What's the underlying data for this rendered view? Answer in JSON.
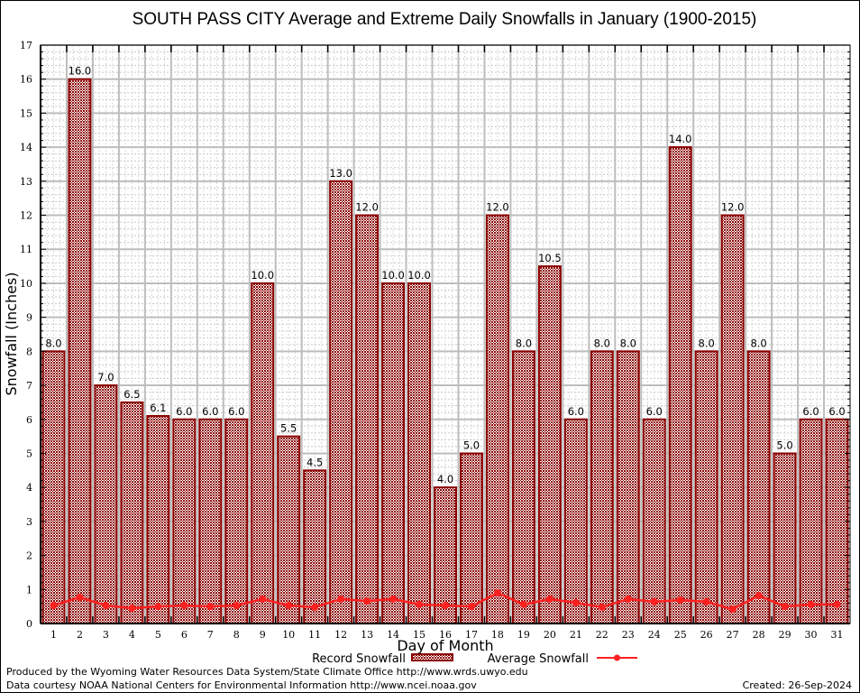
{
  "chart_data": {
    "type": "bar",
    "title": "SOUTH PASS CITY Average and Extreme Daily Snowfalls in January (1900-2015)",
    "xlabel": "Day of Month",
    "ylabel": "Snowfall (Inches)",
    "ylim": [
      0,
      17
    ],
    "yticks": [
      "0",
      "1",
      "2",
      "3",
      "4",
      "5",
      "6",
      "7",
      "8",
      "9",
      "10",
      "11",
      "12",
      "13",
      "14",
      "15",
      "16",
      "17"
    ],
    "grid": true,
    "categories": [
      "1",
      "2",
      "3",
      "4",
      "5",
      "6",
      "7",
      "8",
      "9",
      "10",
      "11",
      "12",
      "13",
      "14",
      "15",
      "16",
      "17",
      "18",
      "19",
      "20",
      "21",
      "22",
      "23",
      "24",
      "25",
      "26",
      "27",
      "28",
      "29",
      "30",
      "31"
    ],
    "series": [
      {
        "name": "Record Snowfall",
        "type": "bar",
        "color": "#8b0000",
        "values": [
          8.0,
          16.0,
          7.0,
          6.5,
          6.1,
          6.0,
          6.0,
          6.0,
          10.0,
          5.5,
          4.5,
          13.0,
          12.0,
          10.0,
          10.0,
          4.0,
          5.0,
          12.0,
          8.0,
          10.5,
          6.0,
          8.0,
          8.0,
          6.0,
          14.0,
          8.0,
          12.0,
          8.0,
          5.0,
          6.0,
          6.0
        ],
        "labels": [
          "8.0",
          "16.0",
          "7.0",
          "6.5",
          "6.1",
          "6.0",
          "6.0",
          "6.0",
          "10.0",
          "5.5",
          "4.5",
          "13.0",
          "12.0",
          "10.0",
          "10.0",
          "4.0",
          "5.0",
          "12.0",
          "8.0",
          "10.5",
          "6.0",
          "8.0",
          "8.0",
          "6.0",
          "14.0",
          "8.0",
          "12.0",
          "8.0",
          "5.0",
          "6.0",
          "6.0"
        ]
      },
      {
        "name": "Average Snowfall",
        "type": "line",
        "color": "#ff2020",
        "values": [
          0.53,
          0.77,
          0.53,
          0.45,
          0.5,
          0.53,
          0.5,
          0.53,
          0.72,
          0.53,
          0.48,
          0.72,
          0.66,
          0.72,
          0.56,
          0.53,
          0.5,
          0.9,
          0.56,
          0.72,
          0.61,
          0.48,
          0.72,
          0.64,
          0.69,
          0.64,
          0.42,
          0.82,
          0.5,
          0.56,
          0.56
        ]
      }
    ],
    "legend": {
      "placement": "bottom-center"
    }
  },
  "footer": {
    "line1": "Produced by the Wyoming Water Resources Data System/State Climate Office http://www.wrds.uwyo.edu",
    "line2": "Data courtesy NOAA National Centers for Environmental Information http://www.ncei.noaa.gov",
    "created": "Created:  26-Sep-2024"
  }
}
